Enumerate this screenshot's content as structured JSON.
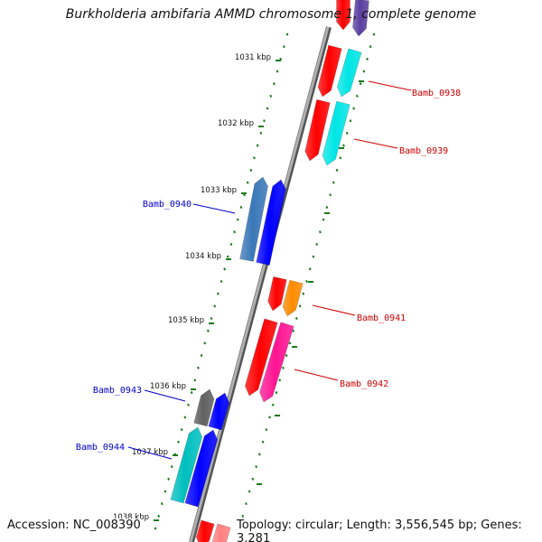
{
  "title": "Burkholderia ambifaria AMMD chromosome 1, complete genome",
  "accession": "Accession: NC_008390",
  "topology": "Topology: circular; Length: 3,556,545 bp; Genes: 3,281",
  "colors": {
    "backbone": "#8a8a8a",
    "tick": "#1a7a1a",
    "label_forward": "#cc0000",
    "label_reverse": "#0000cc"
  },
  "ticks": [
    "1031 kbp",
    "1032 kbp",
    "1033 kbp",
    "1034 kbp",
    "1035 kbp",
    "1036 kbp",
    "1037 kbp",
    "1038 kbp"
  ],
  "genes": [
    {
      "id": "Bamb_0938",
      "label": "Bamb_0938",
      "strand": "forward",
      "colors": [
        "#ff0000",
        "#00e5e5"
      ]
    },
    {
      "id": "Bamb_0939",
      "label": "Bamb_0939",
      "strand": "forward",
      "colors": [
        "#ff0000",
        "#00e5e5"
      ]
    },
    {
      "id": "Bamb_0940",
      "label": "Bamb_0940",
      "strand": "reverse",
      "colors": [
        "#3a78b8",
        "#0000ff"
      ]
    },
    {
      "id": "Bamb_0941",
      "label": "Bamb_0941",
      "strand": "forward",
      "colors": [
        "#ff0000",
        "#ff8c00"
      ]
    },
    {
      "id": "Bamb_0942",
      "label": "Bamb_0942",
      "strand": "forward",
      "colors": [
        "#ff0000",
        "#ff1493"
      ]
    },
    {
      "id": "Bamb_0943",
      "label": "Bamb_0943",
      "strand": "reverse",
      "colors": [
        "#606060",
        "#0000ff"
      ]
    },
    {
      "id": "Bamb_0944",
      "label": "Bamb_0944",
      "strand": "reverse",
      "colors": [
        "#00bfbf",
        "#0000ff"
      ]
    }
  ],
  "edge_features": [
    {
      "id": "top-feature",
      "colors": [
        "#ff0000",
        "#5a3fa0"
      ]
    },
    {
      "id": "bottom-feature",
      "colors": [
        "#ff0000",
        "#ff8080"
      ]
    }
  ]
}
